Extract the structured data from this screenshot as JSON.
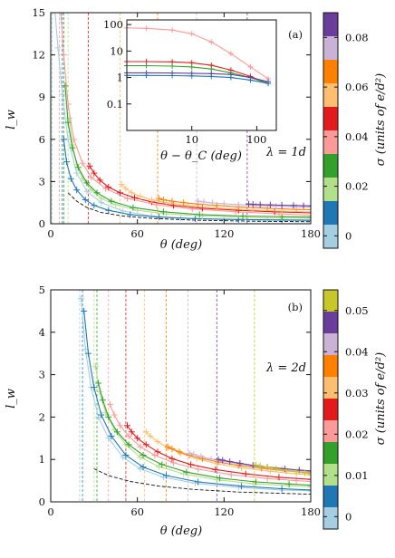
{
  "chart_data": [
    {
      "type": "line",
      "panel": "(a)",
      "annotation": "λ = 1d",
      "xlabel": "θ (deg)",
      "ylabel": "l_w",
      "xlim": [
        0,
        180
      ],
      "ylim": [
        0,
        15
      ],
      "xticks": [
        "0",
        "60",
        "120",
        "180"
      ],
      "yticks": [
        "0",
        "3",
        "6",
        "9",
        "12",
        "15"
      ],
      "colorbar": {
        "label": "σ (units of e/d²)",
        "ticks": [
          "0",
          "0.02",
          "0.04",
          "0.06",
          "0.08"
        ],
        "tick_positions": [
          0,
          0.02,
          0.04,
          0.06,
          0.08
        ],
        "range": [
          -0.005,
          0.09
        ],
        "colors": [
          "#a6cee3",
          "#1f78b4",
          "#b2df8a",
          "#33a02c",
          "#fb9a99",
          "#e31a1c",
          "#fdbf6f",
          "#ff7f00",
          "#cab2d6",
          "#6a3d9a"
        ]
      },
      "series": [
        {
          "sigma": 0.0,
          "color": "#a6cee3",
          "theta_c": 1,
          "x": [
            3,
            5,
            8,
            12,
            18,
            25,
            35,
            50,
            70,
            90,
            120,
            150,
            180
          ],
          "y": [
            15,
            12.5,
            9.2,
            6.0,
            3.6,
            2.3,
            1.5,
            0.9,
            0.55,
            0.4,
            0.3,
            0.25,
            0.2
          ]
        },
        {
          "sigma": 0.01,
          "color": "#1f78b4",
          "theta_c": 8,
          "x": [
            9,
            11,
            14,
            18,
            24,
            30,
            40,
            55,
            75,
            100,
            130,
            160,
            180
          ],
          "y": [
            6.0,
            4.4,
            3.2,
            2.4,
            1.7,
            1.3,
            0.95,
            0.65,
            0.47,
            0.36,
            0.3,
            0.27,
            0.25
          ]
        },
        {
          "sigma": 0.02,
          "color": "#b2df8a",
          "theta_c": 12,
          "x": [
            13,
            15,
            18,
            22,
            28,
            35,
            45,
            60,
            80,
            105,
            135,
            160,
            180
          ],
          "y": [
            7.5,
            5.6,
            4.2,
            3.2,
            2.4,
            1.8,
            1.35,
            0.95,
            0.7,
            0.55,
            0.45,
            0.4,
            0.38
          ]
        },
        {
          "sigma": 0.03,
          "color": "#33a02c",
          "theta_c": 9,
          "x": [
            10,
            12,
            15,
            19,
            25,
            32,
            42,
            57,
            78,
            103,
            133,
            160,
            180
          ],
          "y": [
            9.8,
            7.2,
            5.4,
            4.0,
            2.9,
            2.2,
            1.6,
            1.15,
            0.85,
            0.65,
            0.55,
            0.5,
            0.47
          ]
        },
        {
          "sigma": 0.04,
          "color": "#fb9a99",
          "theta_c": 6,
          "x": [
            7,
            9,
            12,
            16,
            22,
            28,
            38,
            53,
            73,
            98,
            128,
            158,
            180
          ],
          "y": [
            15,
            12.0,
            8.5,
            6.0,
            4.3,
            3.3,
            2.5,
            1.8,
            1.35,
            1.05,
            0.85,
            0.7,
            0.6
          ]
        },
        {
          "sigma": 0.05,
          "color": "#e31a1c",
          "theta_c": 26,
          "x": [
            27,
            30,
            34,
            40,
            48,
            58,
            70,
            85,
            105,
            130,
            155,
            180
          ],
          "y": [
            4.1,
            3.6,
            3.1,
            2.6,
            2.2,
            1.85,
            1.55,
            1.3,
            1.1,
            0.95,
            0.85,
            0.78
          ]
        },
        {
          "sigma": 0.06,
          "color": "#fdbf6f",
          "theta_c": 48,
          "x": [
            49,
            52,
            56,
            62,
            70,
            80,
            95,
            115,
            140,
            160,
            180
          ],
          "y": [
            2.8,
            2.5,
            2.2,
            1.95,
            1.7,
            1.5,
            1.3,
            1.12,
            0.98,
            0.9,
            0.85
          ]
        },
        {
          "sigma": 0.07,
          "color": "#ff7f00",
          "theta_c": 74,
          "x": [
            75,
            78,
            84,
            92,
            102,
            115,
            130,
            150,
            170,
            180
          ],
          "y": [
            1.8,
            1.7,
            1.6,
            1.5,
            1.4,
            1.3,
            1.2,
            1.1,
            1.02,
            1.0
          ]
        },
        {
          "sigma": 0.08,
          "color": "#cab2d6",
          "theta_c": 101,
          "x": [
            102,
            106,
            112,
            120,
            130,
            142,
            156,
            170,
            180
          ],
          "y": [
            1.6,
            1.55,
            1.48,
            1.42,
            1.36,
            1.3,
            1.25,
            1.2,
            1.17
          ]
        },
        {
          "sigma": 0.09,
          "color": "#6a3d9a",
          "theta_c": 136,
          "x": [
            137,
            140,
            145,
            152,
            160,
            168,
            175,
            180
          ],
          "y": [
            1.4,
            1.38,
            1.36,
            1.34,
            1.32,
            1.3,
            1.28,
            1.27
          ]
        },
        {
          "sigma": null,
          "color": "#111111",
          "dashed": true,
          "x": [
            12,
            18,
            25,
            35,
            50,
            70,
            100,
            140,
            180
          ],
          "y": [
            2.2,
            1.6,
            1.15,
            0.8,
            0.55,
            0.38,
            0.25,
            0.18,
            0.14
          ]
        }
      ],
      "inset": {
        "type": "line",
        "xlabel": "θ − θ_C (deg)",
        "xscale": "log",
        "yscale": "log",
        "xlim": [
          1,
          200
        ],
        "ylim": [
          0.01,
          150
        ],
        "xticks": [
          "10",
          "100"
        ],
        "yticks": [
          "0.1",
          "1",
          "10",
          "100"
        ],
        "series": [
          {
            "color": "#fb9a99",
            "x": [
              1,
              2,
              5,
              10,
              20,
              40,
              80,
              150
            ],
            "y": [
              75,
              72,
              62,
              45,
              22,
              8,
              2.5,
              0.9
            ]
          },
          {
            "color": "#e31a1c",
            "x": [
              1,
              2,
              5,
              10,
              20,
              40,
              80,
              150
            ],
            "y": [
              4.0,
              4.0,
              3.9,
              3.6,
              2.9,
              1.9,
              1.1,
              0.6
            ]
          },
          {
            "color": "#33a02c",
            "x": [
              1,
              2,
              5,
              10,
              20,
              40,
              80,
              150
            ],
            "y": [
              2.8,
              2.8,
              2.7,
              2.5,
              2.1,
              1.5,
              1.0,
              0.6
            ]
          },
          {
            "color": "#6a3d9a",
            "x": [
              1,
              2,
              5,
              10,
              20,
              40,
              80,
              150
            ],
            "y": [
              1.5,
              1.5,
              1.48,
              1.45,
              1.4,
              1.3,
              1.0,
              0.7
            ]
          },
          {
            "color": "#1f78b4",
            "x": [
              1,
              2,
              5,
              10,
              20,
              40,
              80,
              150
            ],
            "y": [
              1.2,
              1.2,
              1.18,
              1.15,
              1.1,
              1.0,
              0.8,
              0.6
            ]
          }
        ]
      }
    },
    {
      "type": "line",
      "panel": "(b)",
      "annotation": "λ = 2d",
      "xlabel": "θ (deg)",
      "ylabel": "l_w",
      "xlim": [
        0,
        180
      ],
      "ylim": [
        0,
        5
      ],
      "xticks": [
        "0",
        "60",
        "120",
        "180"
      ],
      "yticks": [
        "0",
        "1",
        "2",
        "3",
        "4",
        "5"
      ],
      "colorbar": {
        "label": "σ (units of e/d²)",
        "ticks": [
          "0",
          "0.01",
          "0.02",
          "0.03",
          "0.04",
          "0.05"
        ],
        "tick_positions": [
          0,
          0.01,
          0.02,
          0.03,
          0.04,
          0.05
        ],
        "range": [
          -0.003,
          0.055
        ],
        "colors": [
          "#a6cee3",
          "#1f78b4",
          "#b2df8a",
          "#33a02c",
          "#fb9a99",
          "#e31a1c",
          "#fdbf6f",
          "#ff7f00",
          "#cab2d6",
          "#6a3d9a",
          "#c7c72a"
        ]
      },
      "series": [
        {
          "sigma": 0.0,
          "color": "#a6cee3",
          "theta_c": 20,
          "x": [
            21,
            24,
            28,
            33,
            40,
            50,
            62,
            78,
            100,
            130,
            160,
            180
          ],
          "y": [
            4.8,
            3.6,
            2.7,
            2.0,
            1.5,
            1.05,
            0.78,
            0.58,
            0.44,
            0.34,
            0.28,
            0.26
          ]
        },
        {
          "sigma": 0.005,
          "color": "#1f78b4",
          "theta_c": 22,
          "x": [
            23,
            26,
            30,
            35,
            42,
            52,
            64,
            80,
            102,
            132,
            160,
            180
          ],
          "y": [
            4.5,
            3.5,
            2.7,
            2.05,
            1.55,
            1.1,
            0.82,
            0.62,
            0.47,
            0.37,
            0.31,
            0.28
          ]
        },
        {
          "sigma": 0.01,
          "color": "#b2df8a",
          "theta_c": 30,
          "x": [
            31,
            34,
            38,
            44,
            52,
            62,
            75,
            92,
            115,
            140,
            165,
            180
          ],
          "y": [
            3.2,
            2.6,
            2.1,
            1.7,
            1.35,
            1.05,
            0.83,
            0.66,
            0.52,
            0.43,
            0.38,
            0.35
          ]
        },
        {
          "sigma": 0.015,
          "color": "#33a02c",
          "theta_c": 32,
          "x": [
            33,
            36,
            40,
            46,
            54,
            64,
            77,
            94,
            117,
            142,
            165,
            180
          ],
          "y": [
            2.8,
            2.4,
            2.0,
            1.65,
            1.35,
            1.1,
            0.88,
            0.7,
            0.56,
            0.47,
            0.42,
            0.39
          ]
        },
        {
          "sigma": 0.02,
          "color": "#fb9a99",
          "theta_c": 40,
          "x": [
            41,
            44,
            48,
            54,
            62,
            72,
            85,
            102,
            125,
            150,
            170,
            180
          ],
          "y": [
            2.3,
            2.05,
            1.8,
            1.55,
            1.3,
            1.1,
            0.92,
            0.77,
            0.64,
            0.55,
            0.5,
            0.48
          ]
        },
        {
          "sigma": 0.025,
          "color": "#e31a1c",
          "theta_c": 52,
          "x": [
            53,
            56,
            60,
            66,
            74,
            84,
            97,
            114,
            135,
            158,
            180
          ],
          "y": [
            1.8,
            1.65,
            1.5,
            1.35,
            1.18,
            1.02,
            0.88,
            0.76,
            0.66,
            0.58,
            0.53
          ]
        },
        {
          "sigma": 0.03,
          "color": "#fdbf6f",
          "theta_c": 65,
          "x": [
            66,
            69,
            74,
            81,
            90,
            101,
            115,
            132,
            152,
            170,
            180
          ],
          "y": [
            1.65,
            1.55,
            1.42,
            1.28,
            1.15,
            1.02,
            0.9,
            0.8,
            0.72,
            0.66,
            0.63
          ]
        },
        {
          "sigma": 0.035,
          "color": "#ff7f00",
          "theta_c": 80,
          "x": [
            81,
            84,
            89,
            96,
            105,
            116,
            130,
            146,
            163,
            180
          ],
          "y": [
            1.3,
            1.25,
            1.18,
            1.1,
            1.02,
            0.94,
            0.86,
            0.79,
            0.73,
            0.68
          ]
        },
        {
          "sigma": 0.04,
          "color": "#cab2d6",
          "theta_c": 95,
          "x": [
            96,
            99,
            104,
            111,
            120,
            131,
            145,
            160,
            172,
            180
          ],
          "y": [
            1.15,
            1.12,
            1.07,
            1.01,
            0.95,
            0.89,
            0.82,
            0.77,
            0.73,
            0.71
          ]
        },
        {
          "sigma": 0.045,
          "color": "#6a3d9a",
          "theta_c": 115,
          "x": [
            116,
            119,
            124,
            131,
            140,
            150,
            162,
            172,
            180
          ],
          "y": [
            1.0,
            0.98,
            0.95,
            0.91,
            0.86,
            0.82,
            0.78,
            0.75,
            0.73
          ]
        },
        {
          "sigma": 0.05,
          "color": "#c7c72a",
          "theta_c": 141,
          "x": [
            142,
            145,
            150,
            156,
            163,
            170,
            176,
            180
          ],
          "y": [
            0.87,
            0.85,
            0.82,
            0.78,
            0.74,
            0.71,
            0.68,
            0.66
          ]
        },
        {
          "sigma": null,
          "color": "#111111",
          "dashed": true,
          "x": [
            30,
            40,
            55,
            75,
            100,
            130,
            160,
            180
          ],
          "y": [
            0.78,
            0.62,
            0.48,
            0.37,
            0.29,
            0.23,
            0.2,
            0.18
          ]
        }
      ]
    }
  ]
}
